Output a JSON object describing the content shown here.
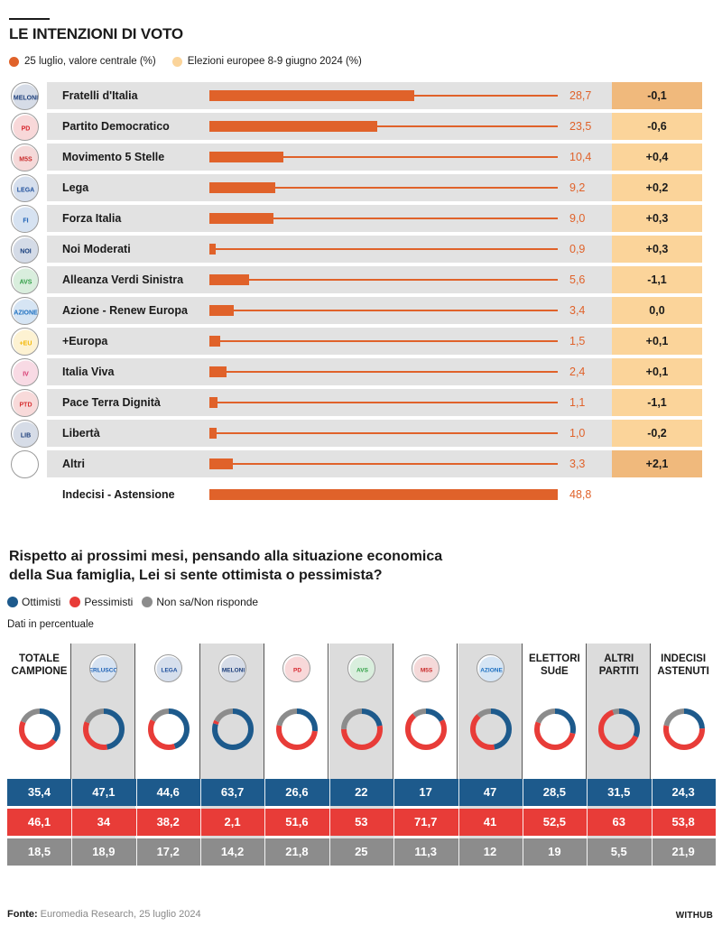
{
  "title": "LE INTENZIONI DI VOTO",
  "legend": {
    "current": "25 luglio, valore centrale (%)",
    "current_color": "#e0622a",
    "previous": "Elezioni europee 8-9 giugno 2024 (%)",
    "previous_color": "#fbd49a"
  },
  "chart_data": [
    {
      "type": "bar",
      "title": "LE INTENZIONI DI VOTO",
      "orientation": "horizontal",
      "xlim": [
        0,
        48.8
      ],
      "categories": [
        "Fratelli d'Italia",
        "Partito Democratico",
        "Movimento 5 Stelle",
        "Lega",
        "Forza Italia",
        "Noi Moderati",
        "Alleanza Verdi Sinistra",
        "Azione - Renew Europa",
        "+Europa",
        "Italia Viva",
        "Pace Terra Dignità",
        "Libertà",
        "Altri",
        "Indecisi - Astensione"
      ],
      "series": [
        {
          "name": "25 luglio, valore centrale (%)",
          "values": [
            28.7,
            23.5,
            10.4,
            9.2,
            9.0,
            0.9,
            5.6,
            3.4,
            1.5,
            2.4,
            1.1,
            1.0,
            3.3,
            48.8
          ]
        }
      ],
      "value_labels": [
        "28,7",
        "23,5",
        "10,4",
        "9,2",
        "9,0",
        "0,9",
        "5,6",
        "3,4",
        "1,5",
        "2,4",
        "1,1",
        "1,0",
        "3,3",
        "48,8"
      ],
      "delta_labels": [
        "-0,1",
        "-0,6",
        "+0,4",
        "+0,2",
        "+0,3",
        "+0,3",
        "-1,1",
        "0,0",
        "+0,1",
        "+0,1",
        "-1,1",
        "-0,2",
        "+2,1",
        ""
      ],
      "deltas": [
        -0.1,
        -0.6,
        0.4,
        0.2,
        0.3,
        0.3,
        -1.1,
        0.0,
        0.1,
        0.1,
        -1.1,
        -0.2,
        2.1,
        null
      ]
    },
    {
      "type": "table",
      "title": "Rispetto ai prossimi mesi, pensando alla situazione economica della Sua famiglia, Lei si sente ottimista o pessimista?",
      "categories": [
        "TOTALE CAMPIONE",
        "Forza Italia",
        "Lega",
        "Fratelli d'Italia",
        "Partito Democratico",
        "Alleanza Verdi Sinistra",
        "Movimento 5 Stelle",
        "Azione",
        "ELETTORI SUdE",
        "ALTRI PARTITI",
        "INDECISI ASTENUTI"
      ],
      "series": [
        {
          "name": "Ottimisti",
          "color": "#1d5a8c",
          "values": [
            35.4,
            47.1,
            44.6,
            63.7,
            26.6,
            22,
            17,
            47,
            28.5,
            31.5,
            24.3
          ]
        },
        {
          "name": "Pessimisti",
          "color": "#e83c38",
          "values": [
            46.1,
            34,
            38.2,
            2.1,
            51.6,
            53,
            71.7,
            41,
            52.5,
            63,
            53.8
          ]
        },
        {
          "name": "Non sa/Non risponde",
          "color": "#8c8c8c",
          "values": [
            18.5,
            18.9,
            17.2,
            14.2,
            21.8,
            25,
            11.3,
            12,
            19,
            5.5,
            21.9
          ]
        }
      ],
      "labels": {
        "ottimisti": [
          "35,4",
          "47,1",
          "44,6",
          "63,7",
          "26,6",
          "22",
          "17",
          "47",
          "28,5",
          "31,5",
          "24,3"
        ],
        "pessimisti": [
          "46,1",
          "34",
          "38,2",
          "2,1",
          "51,6",
          "53",
          "71,7",
          "41",
          "52,5",
          "63",
          "53,8"
        ],
        "nonsa": [
          "18,5",
          "18,9",
          "17,2",
          "14,2",
          "21,8",
          "25",
          "11,3",
          "12",
          "19",
          "5,5",
          "21,9"
        ]
      }
    }
  ],
  "question": {
    "line1": "Rispetto ai prossimi mesi, pensando alla situazione economica",
    "line2": "della Sua famiglia, Lei si sente ottimista o pessimista?",
    "legend": [
      "Ottimisti",
      "Pessimisti",
      "Non sa/Non risponde"
    ],
    "note": "Dati in percentuale"
  },
  "columns": [
    {
      "head1": "TOTALE",
      "head2": "CAMPIONE",
      "logo": "",
      "shaded": false
    },
    {
      "head1": "",
      "head2": "",
      "logo": "forza-italia",
      "logo_text": "BERLUSCONI",
      "logo_color": "#1a5fb4",
      "shaded": true
    },
    {
      "head1": "",
      "head2": "",
      "logo": "lega",
      "logo_text": "LEGA",
      "logo_color": "#1d4f9c",
      "shaded": false
    },
    {
      "head1": "",
      "head2": "",
      "logo": "fdi",
      "logo_text": "MELONI",
      "logo_color": "#1b3d7a",
      "shaded": true
    },
    {
      "head1": "",
      "head2": "",
      "logo": "pd",
      "logo_text": "PD",
      "logo_color": "#d7262d",
      "shaded": false
    },
    {
      "head1": "",
      "head2": "",
      "logo": "avs",
      "logo_text": "AVS",
      "logo_color": "#2f9e44",
      "shaded": true
    },
    {
      "head1": "",
      "head2": "",
      "logo": "m5s",
      "logo_text": "M5S",
      "logo_color": "#c92a2a",
      "shaded": false
    },
    {
      "head1": "",
      "head2": "",
      "logo": "azione",
      "logo_text": "AZIONE",
      "logo_color": "#1c6fc0",
      "shaded": true
    },
    {
      "head1": "ELETTORI",
      "head2": "SUdE",
      "logo": "",
      "shaded": false
    },
    {
      "head1": "ALTRI",
      "head2": "PARTITI",
      "logo": "",
      "shaded": true
    },
    {
      "head1": "INDECISI",
      "head2": "ASTENUTI",
      "logo": "",
      "shaded": false
    }
  ],
  "parties": [
    {
      "logo_text": "MELONI",
      "logo_color": "#1b3d7a"
    },
    {
      "logo_text": "PD",
      "logo_color": "#d7262d"
    },
    {
      "logo_text": "M5S",
      "logo_color": "#c92a2a"
    },
    {
      "logo_text": "LEGA",
      "logo_color": "#1d4f9c"
    },
    {
      "logo_text": "FI",
      "logo_color": "#1a5fb4"
    },
    {
      "logo_text": "NOI",
      "logo_color": "#123a7a"
    },
    {
      "logo_text": "AVS",
      "logo_color": "#2f9e44"
    },
    {
      "logo_text": "AZIONE",
      "logo_color": "#1c6fc0"
    },
    {
      "logo_text": "+EU",
      "logo_color": "#f2b705"
    },
    {
      "logo_text": "IV",
      "logo_color": "#d6336c"
    },
    {
      "logo_text": "PTD",
      "logo_color": "#d63031"
    },
    {
      "logo_text": "LIB",
      "logo_color": "#1b3d7a"
    }
  ],
  "footer": {
    "label": "Fonte:",
    "text": "Euromedia Research, 25 luglio 2024",
    "brand": "WITHUB"
  }
}
